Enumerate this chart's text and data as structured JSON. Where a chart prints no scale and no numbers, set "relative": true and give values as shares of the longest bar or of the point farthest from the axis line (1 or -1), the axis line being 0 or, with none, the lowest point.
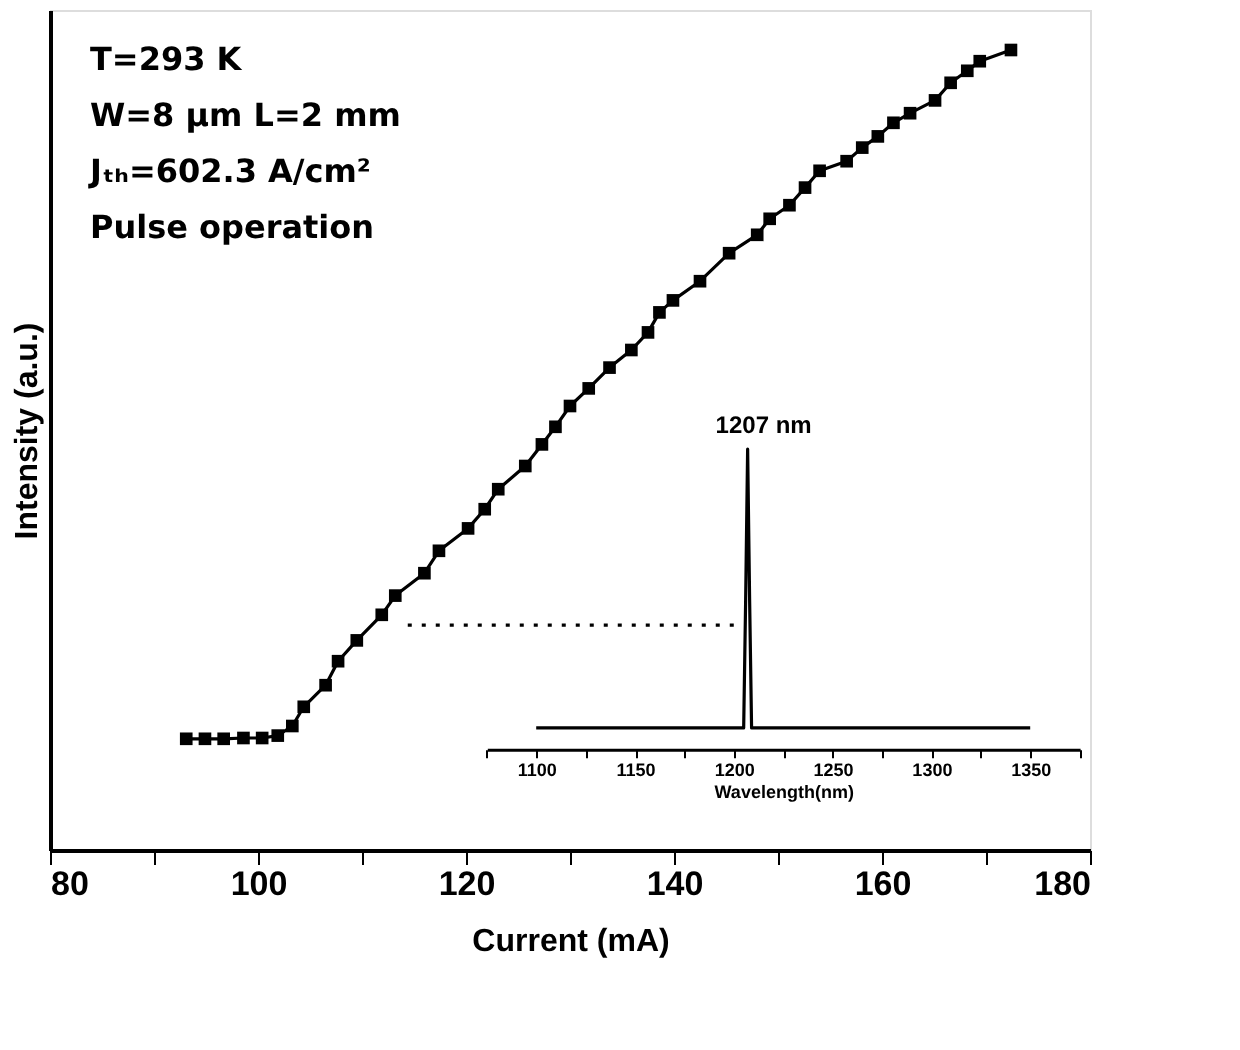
{
  "chart_data": [
    {
      "type": "line",
      "xlabel": "Current (mA)",
      "ylabel": "Intensity (a.u.)",
      "relative": true,
      "xlim": [
        80,
        180
      ],
      "xticks": [
        80,
        {
          "value": 90,
          "label": null
        },
        100,
        {
          "value": 110,
          "label": null
        },
        120,
        {
          "value": 130,
          "label": null
        },
        140,
        {
          "value": 150,
          "label": null
        },
        160,
        {
          "value": 170,
          "label": null
        },
        180
      ],
      "annotations": [
        "T=293 K",
        "W=8 μm  L=2 mm",
        "Jₜₕ=602.3 A/cm²",
        "Pulse operation"
      ],
      "series": [
        {
          "color": "#000000",
          "marker": "square",
          "line_style": "solid",
          "x": [
            93.1,
            94.9,
            96.7,
            98.6,
            100.4,
            101.9,
            103.3,
            104.4,
            106.5,
            107.7,
            109.5,
            111.9,
            113.2,
            116.0,
            117.4,
            120.2,
            121.8,
            123.1,
            125.7,
            127.3,
            128.6,
            130.0,
            131.8,
            133.8,
            135.9,
            137.5,
            138.6,
            139.9,
            142.5,
            145.3,
            148.0,
            149.2,
            151.1,
            152.6,
            154.0,
            156.6,
            158.1,
            159.6,
            161.1,
            162.7,
            165.1,
            166.6,
            168.2,
            169.4,
            172.4
          ],
          "values": [
            0.139,
            0.139,
            0.139,
            0.14,
            0.14,
            0.143,
            0.155,
            0.179,
            0.206,
            0.236,
            0.262,
            0.294,
            0.318,
            0.346,
            0.374,
            0.402,
            0.426,
            0.451,
            0.48,
            0.507,
            0.529,
            0.555,
            0.577,
            0.603,
            0.625,
            0.647,
            0.672,
            0.687,
            0.711,
            0.746,
            0.769,
            0.789,
            0.806,
            0.828,
            0.849,
            0.861,
            0.878,
            0.892,
            0.909,
            0.921,
            0.937,
            0.959,
            0.974,
            0.986,
            1.0
          ]
        },
        {
          "color": "#000000",
          "marker": "none",
          "line_style": "dotted",
          "x": [
            114.4,
            146.5
          ],
          "values": [
            0.281,
            0.281
          ]
        }
      ]
    },
    {
      "type": "line",
      "xlabel": "Wavelength(nm)",
      "relative": true,
      "xlim": [
        1075,
        1375
      ],
      "xticks": [
        {
          "value": 1075,
          "label": null
        },
        1100,
        {
          "value": 1125,
          "label": null
        },
        1150,
        {
          "value": 1175,
          "label": null
        },
        1200,
        {
          "value": 1225,
          "label": null
        },
        1250,
        {
          "value": 1275,
          "label": null
        },
        1300,
        {
          "value": 1325,
          "label": null
        },
        1350,
        {
          "value": 1375,
          "label": null
        }
      ],
      "annotations": [
        {
          "text": "1207 nm",
          "x": 1207,
          "y": 1
        }
      ],
      "series": [
        {
          "color": "#000000",
          "marker": "none",
          "line_style": "solid",
          "x": [
            1100,
            1205,
            1206,
            1207,
            1208,
            1209,
            1350
          ],
          "values": [
            0.071,
            0.071,
            0.5,
            1.0,
            0.5,
            0.071,
            0.071
          ]
        }
      ]
    }
  ]
}
